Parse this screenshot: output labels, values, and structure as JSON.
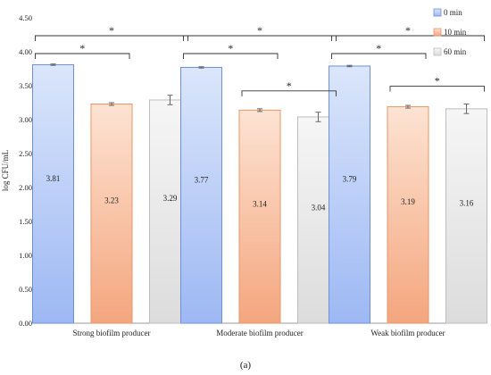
{
  "chart_data": {
    "type": "bar",
    "title": "",
    "xlabel": "",
    "ylabel": "log CFU/mL",
    "ylim": [
      0,
      4.5
    ],
    "yticks": [
      "0.00",
      "0.50",
      "1.00",
      "1.50",
      "2.00",
      "2.50",
      "3.00",
      "3.50",
      "4.00",
      "4.50"
    ],
    "categories": [
      "Strong biofilm producer",
      "Moderate biofilm producer",
      "Weak biofilm producer"
    ],
    "series": [
      {
        "name": "0 min",
        "values": [
          3.81,
          3.77,
          3.79
        ],
        "labels": [
          "3.81",
          "3.77",
          "3.79"
        ],
        "errors": [
          0.01,
          0.01,
          0.01
        ],
        "color_top": "#dbe6fb",
        "color_bottom": "#9db8f3",
        "stroke": "#6f8fd8"
      },
      {
        "name": "10 min",
        "values": [
          3.23,
          3.14,
          3.19
        ],
        "labels": [
          "3.23",
          "3.14",
          "3.19"
        ],
        "errors": [
          0.02,
          0.02,
          0.02
        ],
        "color_top": "#fde3d3",
        "color_bottom": "#f4a67e",
        "stroke": "#e6976a"
      },
      {
        "name": "60 min",
        "values": [
          3.29,
          3.04,
          3.16
        ],
        "labels": [
          "3.29",
          "3.04",
          "3.16"
        ],
        "errors": [
          0.07,
          0.07,
          0.07
        ],
        "color_top": "#f6f6f6",
        "color_bottom": "#dcdcdc",
        "stroke": "#bdbdbd"
      }
    ],
    "significance": [
      {
        "category": 0,
        "from": 0,
        "to": 2,
        "label": "*"
      },
      {
        "category": 0,
        "from": 0,
        "to": 1,
        "label": "*"
      },
      {
        "category": 1,
        "from": 0,
        "to": 2,
        "label": "*"
      },
      {
        "category": 1,
        "from": 0,
        "to": 1,
        "label": "*"
      },
      {
        "category": 1,
        "from": 1,
        "to": 2,
        "label": "*"
      },
      {
        "category": 2,
        "from": 0,
        "to": 2,
        "label": "*"
      },
      {
        "category": 2,
        "from": 0,
        "to": 1,
        "label": "*"
      },
      {
        "category": 2,
        "from": 1,
        "to": 2,
        "label": "*"
      }
    ],
    "legend_position": "top-right",
    "grid": false
  },
  "caption": "(a)"
}
